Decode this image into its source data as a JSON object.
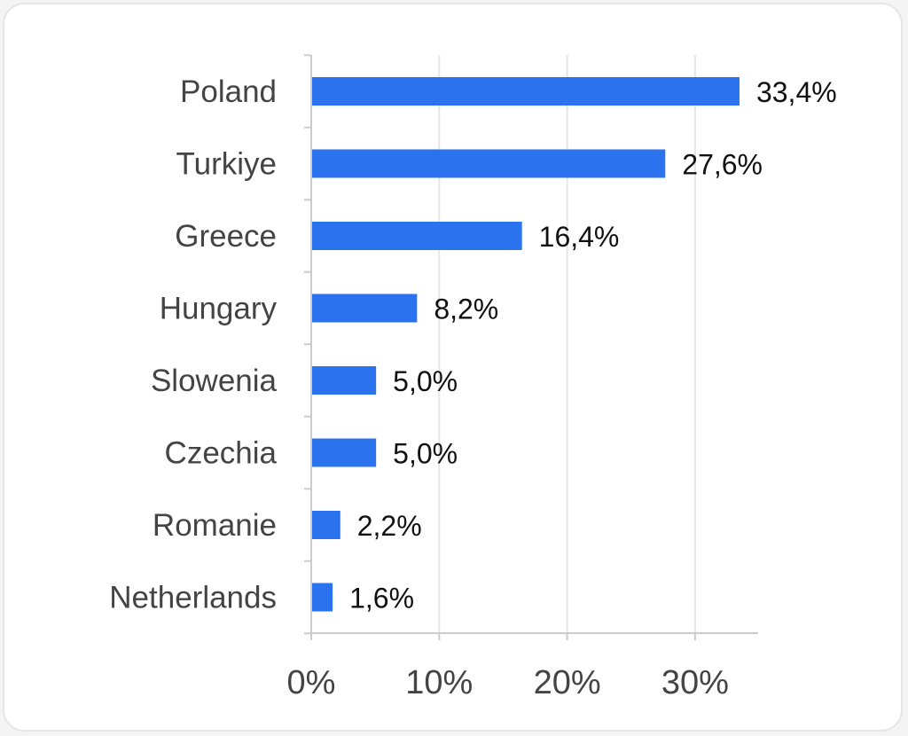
{
  "chart_data": {
    "type": "bar",
    "orientation": "horizontal",
    "categories": [
      "Poland",
      "Turkiye",
      "Greece",
      "Hungary",
      "Slowenia",
      "Czechia",
      "Romanie",
      "Netherlands"
    ],
    "values": [
      33.4,
      27.6,
      16.4,
      8.2,
      5.0,
      5.0,
      2.2,
      1.6
    ],
    "value_labels": [
      "33,4%",
      "27,6%",
      "16,4%",
      "8,2%",
      "5,0%",
      "5,0%",
      "2,2%",
      "1,6%"
    ],
    "x_ticks": [
      0,
      10,
      20,
      30
    ],
    "x_tick_labels": [
      "0%",
      "10%",
      "20%",
      "30%"
    ],
    "xlim": [
      0,
      35
    ],
    "grid": "vertical",
    "legend": "none",
    "colors": {
      "bar": "#2a72ee",
      "grid": "#e6e6e6",
      "axis": "#cccccc"
    }
  }
}
